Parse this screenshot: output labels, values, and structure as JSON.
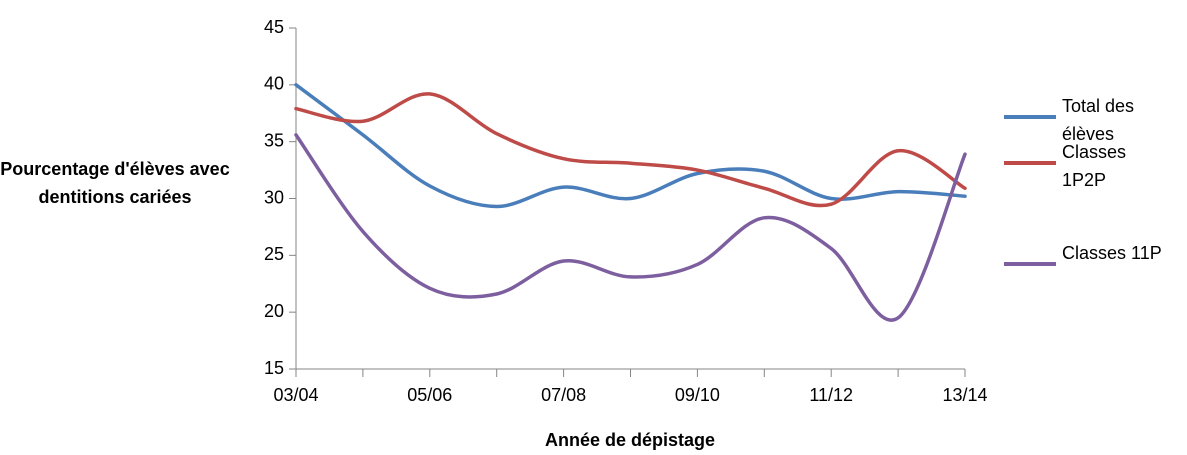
{
  "chart_data": {
    "type": "line",
    "x_label": "Année de dépistage",
    "y_label": "Pourcentage d'élèves avec dentitions cariées",
    "categories": [
      "03/04",
      null,
      "05/06",
      null,
      "07/08",
      null,
      "09/10",
      null,
      "11/12",
      null,
      "13/14"
    ],
    "series": [
      {
        "name": "Total des élèves",
        "color": "#4a7ebb",
        "values": [
          40,
          35.6,
          31.1,
          29.3,
          31,
          30,
          32.2,
          32.4,
          30,
          30.6,
          30.2
        ]
      },
      {
        "name": "Classes 1P2P",
        "color": "#be4b48",
        "values": [
          37.9,
          36.8,
          39.2,
          35.7,
          33.5,
          33.1,
          32.5,
          30.9,
          29.5,
          34.2,
          30.9
        ]
      },
      {
        "name": "Classes 11P",
        "color": "#7d5fa0",
        "values": [
          35.6,
          27.1,
          22.1,
          21.6,
          24.5,
          23.1,
          24.2,
          28.3,
          25.6,
          19.5,
          33.9
        ]
      }
    ],
    "ylim": [
      15,
      45
    ],
    "yticks": [
      15,
      20,
      25,
      30,
      35,
      40,
      45
    ],
    "legend": "right",
    "grid": false,
    "smooth": true
  }
}
